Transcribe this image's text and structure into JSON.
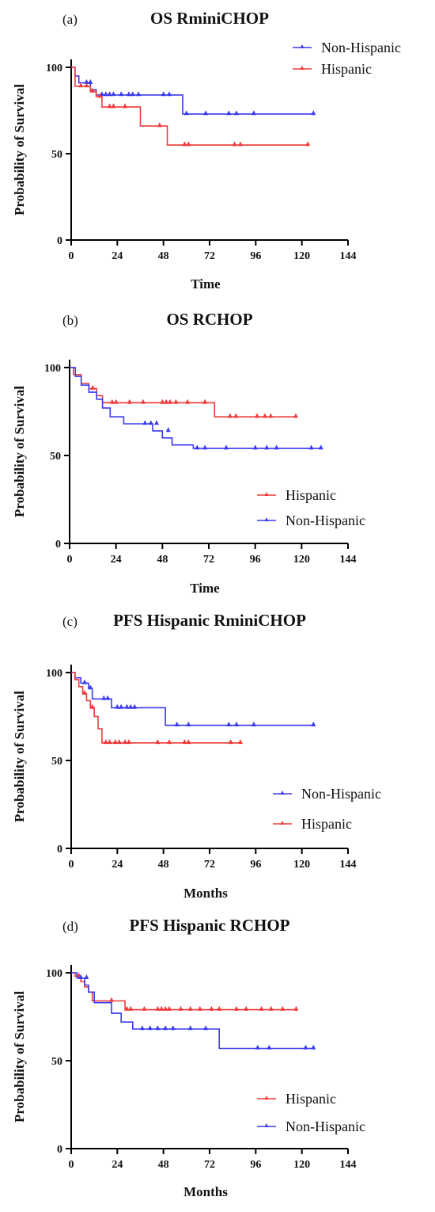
{
  "chart_data": [
    {
      "type": "line",
      "panel": "(a)",
      "title": "OS RminiCHOP",
      "xlabel": "Time",
      "ylabel": "Probability of Survival",
      "xlim": [
        0,
        144
      ],
      "ylim": [
        0,
        100
      ],
      "xticks": [
        "0",
        "24",
        "48",
        "72",
        "96",
        "120",
        "144"
      ],
      "yticks": [
        "0",
        "50",
        "100"
      ],
      "legend": "top-right",
      "grid": false,
      "series": [
        {
          "name": "Non-Hispanic",
          "color": "#3a3aee",
          "steps": [
            [
              0,
              100
            ],
            [
              2,
              95
            ],
            [
              4,
              91
            ],
            [
              10,
              87
            ],
            [
              13,
              84
            ],
            [
              58,
              73
            ],
            [
              126,
              73
            ]
          ],
          "censored": [
            [
              8,
              91
            ],
            [
              10,
              91
            ],
            [
              16,
              84
            ],
            [
              18,
              84
            ],
            [
              20,
              84
            ],
            [
              22,
              84
            ],
            [
              26,
              84
            ],
            [
              30,
              84
            ],
            [
              32,
              84
            ],
            [
              35,
              84
            ],
            [
              48,
              84
            ],
            [
              51,
              84
            ],
            [
              60,
              73
            ],
            [
              70,
              73
            ],
            [
              82,
              73
            ],
            [
              86,
              73
            ],
            [
              95,
              73
            ],
            [
              126,
              73
            ]
          ]
        },
        {
          "name": "Hispanic",
          "color": "#ee3a3a",
          "steps": [
            [
              0,
              100
            ],
            [
              2,
              89
            ],
            [
              10,
              86
            ],
            [
              13,
              83
            ],
            [
              16,
              77
            ],
            [
              36,
              66
            ],
            [
              50,
              55
            ],
            [
              124,
              55
            ]
          ],
          "censored": [
            [
              5,
              89
            ],
            [
              8,
              89
            ],
            [
              11,
              86
            ],
            [
              15,
              83
            ],
            [
              20,
              77
            ],
            [
              22,
              77
            ],
            [
              28,
              77
            ],
            [
              46,
              66
            ],
            [
              59,
              55
            ],
            [
              61,
              55
            ],
            [
              85,
              55
            ],
            [
              88,
              55
            ],
            [
              123,
              55
            ]
          ]
        }
      ]
    },
    {
      "type": "line",
      "panel": "(b)",
      "title": "OS RCHOP",
      "xlabel": "Time",
      "ylabel": "Probability of Survival",
      "xlim": [
        0,
        144
      ],
      "ylim": [
        0,
        100
      ],
      "xticks": [
        "0",
        "24",
        "48",
        "72",
        "96",
        "120",
        "144"
      ],
      "yticks": [
        "0",
        "50",
        "100"
      ],
      "legend": "bottom-right",
      "grid": false,
      "series": [
        {
          "name": "Hispanic",
          "color": "#ee3a3a",
          "steps": [
            [
              0,
              100
            ],
            [
              2,
              96
            ],
            [
              6,
              91
            ],
            [
              10,
              88
            ],
            [
              14,
              84
            ],
            [
              17,
              80
            ],
            [
              75,
              72
            ],
            [
              117,
              72
            ]
          ],
          "censored": [
            [
              12,
              88
            ],
            [
              22,
              80
            ],
            [
              24,
              80
            ],
            [
              31,
              80
            ],
            [
              38,
              80
            ],
            [
              48,
              80
            ],
            [
              50,
              80
            ],
            [
              52,
              80
            ],
            [
              55,
              80
            ],
            [
              61,
              80
            ],
            [
              70,
              80
            ],
            [
              83,
              72
            ],
            [
              86,
              72
            ],
            [
              97,
              72
            ],
            [
              101,
              72
            ],
            [
              104,
              72
            ],
            [
              117,
              72
            ]
          ]
        },
        {
          "name": "Non-Hispanic",
          "color": "#3a3aee",
          "steps": [
            [
              0,
              100
            ],
            [
              3,
              95
            ],
            [
              6,
              90
            ],
            [
              10,
              86
            ],
            [
              14,
              82
            ],
            [
              17,
              77
            ],
            [
              21,
              72
            ],
            [
              28,
              68
            ],
            [
              43,
              64
            ],
            [
              48,
              60
            ],
            [
              53,
              56
            ],
            [
              64,
              54
            ],
            [
              130,
              54
            ]
          ],
          "censored": [
            [
              39,
              68
            ],
            [
              42,
              68
            ],
            [
              45,
              68
            ],
            [
              51,
              64
            ],
            [
              66,
              54
            ],
            [
              70,
              54
            ],
            [
              81,
              54
            ],
            [
              96,
              54
            ],
            [
              102,
              54
            ],
            [
              107,
              54
            ],
            [
              125,
              54
            ],
            [
              130,
              54
            ]
          ]
        }
      ]
    },
    {
      "type": "line",
      "panel": "(c)",
      "title": "PFS Hispanic RminiCHOP",
      "xlabel": "Months",
      "ylabel": "Probability of Survival",
      "xlim": [
        0,
        144
      ],
      "ylim": [
        0,
        100
      ],
      "xticks": [
        "0",
        "24",
        "48",
        "72",
        "96",
        "120",
        "144"
      ],
      "yticks": [
        "0",
        "50",
        "100"
      ],
      "legend": "bottom-right",
      "grid": false,
      "series": [
        {
          "name": "Non-Hispanic",
          "color": "#3a3aee",
          "steps": [
            [
              0,
              100
            ],
            [
              2,
              97
            ],
            [
              5,
              94
            ],
            [
              9,
              91
            ],
            [
              11,
              85
            ],
            [
              21,
              80
            ],
            [
              49,
              70
            ],
            [
              126,
              70
            ]
          ],
          "censored": [
            [
              7,
              94
            ],
            [
              10,
              91
            ],
            [
              17,
              85
            ],
            [
              19,
              85
            ],
            [
              24,
              80
            ],
            [
              26,
              80
            ],
            [
              29,
              80
            ],
            [
              31,
              80
            ],
            [
              33,
              80
            ],
            [
              55,
              70
            ],
            [
              61,
              70
            ],
            [
              82,
              70
            ],
            [
              86,
              70
            ],
            [
              95,
              70
            ],
            [
              126,
              70
            ]
          ]
        },
        {
          "name": "Hispanic",
          "color": "#ee3a3a",
          "steps": [
            [
              0,
              100
            ],
            [
              2,
              96
            ],
            [
              4,
              92
            ],
            [
              6,
              88
            ],
            [
              8,
              84
            ],
            [
              10,
              80
            ],
            [
              12,
              75
            ],
            [
              14,
              68
            ],
            [
              16,
              60
            ],
            [
              89,
              60
            ]
          ],
          "censored": [
            [
              7,
              88
            ],
            [
              11,
              80
            ],
            [
              18,
              60
            ],
            [
              20,
              60
            ],
            [
              23,
              60
            ],
            [
              25,
              60
            ],
            [
              28,
              60
            ],
            [
              30,
              60
            ],
            [
              45,
              60
            ],
            [
              51,
              60
            ],
            [
              59,
              60
            ],
            [
              61,
              60
            ],
            [
              83,
              60
            ],
            [
              88,
              60
            ]
          ]
        }
      ]
    },
    {
      "type": "line",
      "panel": "(d)",
      "title": "PFS Hispanic RCHOP",
      "xlabel": "Months",
      "ylabel": "Probability of Survival",
      "xlim": [
        0,
        144
      ],
      "ylim": [
        0,
        100
      ],
      "xticks": [
        "0",
        "24",
        "48",
        "72",
        "96",
        "120",
        "144"
      ],
      "yticks": [
        "0",
        "50",
        "100"
      ],
      "legend": "bottom-right",
      "grid": false,
      "series": [
        {
          "name": "Hispanic",
          "color": "#ee3a3a",
          "steps": [
            [
              0,
              100
            ],
            [
              2,
              98
            ],
            [
              5,
              95
            ],
            [
              7,
              92
            ],
            [
              9,
              89
            ],
            [
              11,
              84
            ],
            [
              28,
              79
            ],
            [
              117,
              79
            ]
          ],
          "censored": [
            [
              4,
              98
            ],
            [
              21,
              84
            ],
            [
              29,
              79
            ],
            [
              31,
              79
            ],
            [
              38,
              79
            ],
            [
              45,
              79
            ],
            [
              47,
              79
            ],
            [
              49,
              79
            ],
            [
              51,
              79
            ],
            [
              57,
              79
            ],
            [
              62,
              79
            ],
            [
              67,
              79
            ],
            [
              73,
              79
            ],
            [
              77,
              79
            ],
            [
              86,
              79
            ],
            [
              91,
              79
            ],
            [
              99,
              79
            ],
            [
              104,
              79
            ],
            [
              110,
              79
            ],
            [
              117,
              79
            ]
          ]
        },
        {
          "name": "Non-Hispanic",
          "color": "#3a3aee",
          "steps": [
            [
              0,
              100
            ],
            [
              3,
              97
            ],
            [
              7,
              93
            ],
            [
              9,
              89
            ],
            [
              12,
              83
            ],
            [
              21,
              77
            ],
            [
              26,
              72
            ],
            [
              32,
              68
            ],
            [
              77,
              57
            ],
            [
              126,
              57
            ]
          ],
          "censored": [
            [
              5,
              97
            ],
            [
              8,
              97
            ],
            [
              37,
              68
            ],
            [
              41,
              68
            ],
            [
              45,
              68
            ],
            [
              49,
              68
            ],
            [
              53,
              68
            ],
            [
              62,
              68
            ],
            [
              70,
              68
            ],
            [
              97,
              57
            ],
            [
              103,
              57
            ],
            [
              122,
              57
            ],
            [
              126,
              57
            ]
          ]
        }
      ]
    }
  ]
}
